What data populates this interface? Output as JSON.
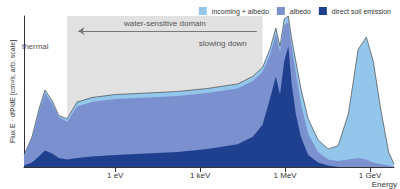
{
  "chart_data": {
    "type": "area",
    "stacked": false,
    "log": "x",
    "grid": false,
    "legend": "top-right",
    "tick_labels": "x",
    "x_label": "Energy",
    "y_label": "Flux E · dΦ/dE [cm²/s, arb. scale]",
    "xlim": [
      0.0006,
      7000000000
    ],
    "xticks": [
      {
        "value": 1,
        "label": "1 eV"
      },
      {
        "value": 1000,
        "label": "1 keV"
      },
      {
        "value": 1000000,
        "label": "1 MeV"
      },
      {
        "value": 1000000000,
        "label": "1 GeV"
      }
    ],
    "ylim": [
      0,
      100
    ],
    "x": [
      0.0006,
      0.00115,
      0.002,
      0.0033,
      0.0059,
      0.0102,
      0.02,
      0.045,
      0.15,
      1,
      13.6,
      158,
      1800,
      21000,
      72000,
      160000,
      290000,
      470000,
      660000,
      930000,
      1300000,
      1700000,
      2400000,
      3600000,
      6500000,
      14500000,
      33000000,
      74000000,
      170000000,
      380000000,
      740000000,
      1300000000,
      2300000000,
      4500000000,
      7000000000
    ],
    "series": [
      {
        "name": "incoming + albedo",
        "color": "#93c6ea",
        "values": [
          8,
          20,
          38,
          51,
          44,
          34,
          32,
          43,
          46,
          48,
          49,
          50,
          52,
          55,
          60,
          66,
          78,
          92,
          80,
          98,
          100,
          85,
          70,
          52,
          32,
          18,
          12,
          14,
          35,
          78,
          86,
          70,
          40,
          10,
          2
        ]
      },
      {
        "name": "albedo",
        "color": "#7b90cf",
        "values": [
          8,
          19,
          36,
          49,
          42,
          33,
          30,
          40,
          43,
          45,
          46,
          47,
          49,
          52,
          57,
          63,
          74,
          88,
          76,
          94,
          96,
          80,
          62,
          42,
          22,
          10,
          5,
          4,
          5,
          6,
          5,
          3,
          2,
          1,
          0
        ]
      },
      {
        "name": "direct soil emission",
        "color": "#1f3f8f",
        "values": [
          1,
          3,
          7,
          11,
          9,
          6,
          5,
          6,
          7,
          8,
          9,
          10,
          12,
          15,
          20,
          28,
          45,
          60,
          48,
          70,
          80,
          55,
          35,
          20,
          8,
          3,
          1,
          0,
          0,
          0,
          0,
          0,
          0,
          0,
          0
        ]
      }
    ],
    "shaded_region": {
      "label": "water-sensitive domain",
      "x": [
        0.02,
        160000
      ]
    },
    "arrows": [
      {
        "from_x": 100000,
        "to_x": 0.05,
        "y": 90
      }
    ],
    "annotations": [
      {
        "text": "slowing down",
        "x": 6300,
        "y": 82
      },
      {
        "text": "thermal",
        "x": 0.0015,
        "y": 80
      }
    ]
  }
}
